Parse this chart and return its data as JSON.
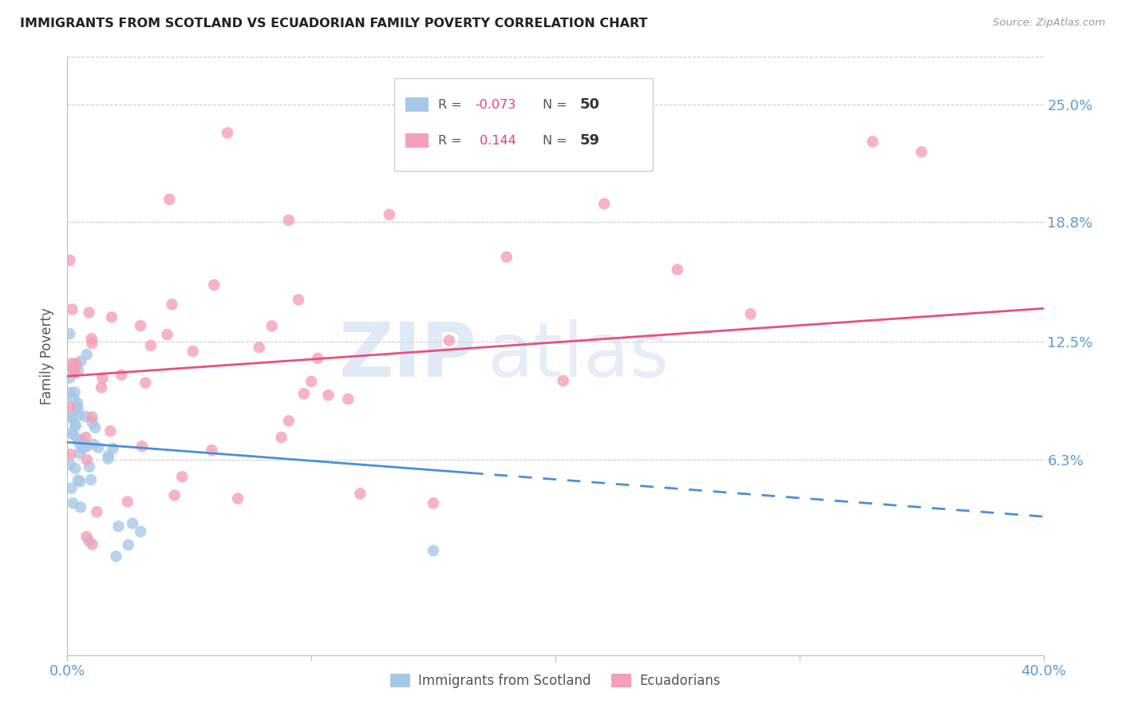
{
  "title": "IMMIGRANTS FROM SCOTLAND VS ECUADORIAN FAMILY POVERTY CORRELATION CHART",
  "source": "Source: ZipAtlas.com",
  "ylabel": "Family Poverty",
  "ytick_labels": [
    "25.0%",
    "18.8%",
    "12.5%",
    "6.3%"
  ],
  "ytick_values": [
    0.25,
    0.188,
    0.125,
    0.063
  ],
  "xmin": 0.0,
  "xmax": 0.4,
  "ymin": -0.04,
  "ymax": 0.275,
  "color_scotland": "#a8c8e8",
  "color_ecuador": "#f4a0b8",
  "color_scotland_line": "#4a90d9",
  "color_ecuador_line": "#e8507a",
  "color_axis_labels": "#5b9bd5",
  "watermark_zip": "ZIP",
  "watermark_atlas": "atlas"
}
